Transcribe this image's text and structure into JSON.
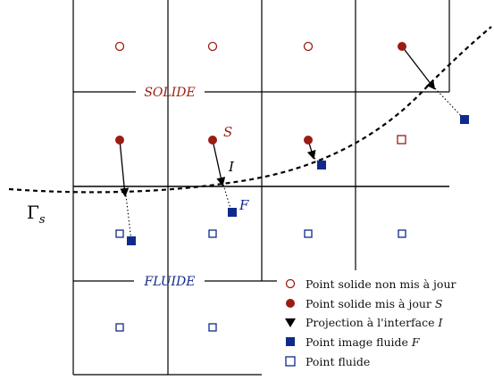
{
  "labels": {
    "solide": "SOLIDE",
    "fluide": "FLUIDE",
    "point_s": "S",
    "point_i": "I",
    "point_f": "F",
    "interface_gamma": "Γ",
    "interface_sub": "s"
  },
  "legend": {
    "items": [
      {
        "symbol": "open-circle",
        "text": "Point solide non mis à jour"
      },
      {
        "symbol": "filled-circle",
        "text": "Point solide mis à jour S"
      },
      {
        "symbol": "down-triangle",
        "text": "Projection à l'interface I"
      },
      {
        "symbol": "filled-square",
        "text": "Point image fluide F"
      },
      {
        "symbol": "open-square",
        "text": "Point fluide"
      }
    ]
  },
  "colors": {
    "solid": "#9b1c12",
    "fluid": "#0f2a8c",
    "line": "#000000"
  }
}
